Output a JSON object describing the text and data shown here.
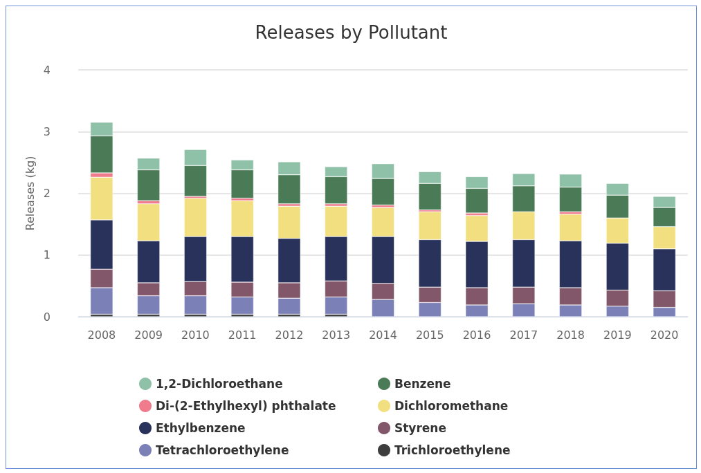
{
  "chart_data": {
    "type": "bar",
    "stacked": true,
    "title": "Releases by Pollutant",
    "ylabel": "Releases (kg)",
    "categories": [
      "2008",
      "2009",
      "2010",
      "2011",
      "2012",
      "2013",
      "2014",
      "2015",
      "2016",
      "2017",
      "2018",
      "2019",
      "2020"
    ],
    "ylim": [
      0,
      4
    ],
    "yticks": [
      0,
      1,
      2,
      3,
      4
    ],
    "grid": "y",
    "legend": "bottom",
    "series": [
      {
        "name": "Trichloroethylene",
        "color": "#3d3d3d",
        "values": [
          0.04,
          0.04,
          0.04,
          0.04,
          0.04,
          0.04,
          0,
          0,
          0,
          0,
          0,
          0,
          0
        ]
      },
      {
        "name": "Tetrachloroethylene",
        "color": "#7b80b6",
        "values": [
          0.43,
          0.3,
          0.3,
          0.28,
          0.26,
          0.28,
          0.28,
          0.23,
          0.19,
          0.21,
          0.19,
          0.17,
          0.15
        ]
      },
      {
        "name": "Styrene",
        "color": "#83576a",
        "values": [
          0.3,
          0.21,
          0.23,
          0.24,
          0.25,
          0.26,
          0.26,
          0.25,
          0.28,
          0.27,
          0.28,
          0.26,
          0.27
        ]
      },
      {
        "name": "Ethylbenzene",
        "color": "#29325b",
        "values": [
          0.8,
          0.68,
          0.73,
          0.74,
          0.72,
          0.72,
          0.76,
          0.77,
          0.75,
          0.77,
          0.76,
          0.76,
          0.68
        ]
      },
      {
        "name": "Dichloromethane",
        "color": "#f2df7f",
        "values": [
          0.69,
          0.6,
          0.62,
          0.58,
          0.52,
          0.49,
          0.47,
          0.45,
          0.42,
          0.45,
          0.43,
          0.41,
          0.36
        ]
      },
      {
        "name": "Di-(2-Ethylhexyl) phthalate",
        "color": "#ef7b8c",
        "values": [
          0.07,
          0.05,
          0.03,
          0.04,
          0.04,
          0.04,
          0.04,
          0.03,
          0.04,
          0,
          0.04,
          0,
          0
        ]
      },
      {
        "name": "Benzene",
        "color": "#4a7b56",
        "values": [
          0.6,
          0.5,
          0.5,
          0.46,
          0.47,
          0.44,
          0.43,
          0.43,
          0.4,
          0.42,
          0.4,
          0.37,
          0.31
        ]
      },
      {
        "name": "1,2-Dichloroethane",
        "color": "#8fc1a8",
        "values": [
          0.22,
          0.19,
          0.26,
          0.16,
          0.21,
          0.16,
          0.24,
          0.19,
          0.19,
          0.2,
          0.21,
          0.19,
          0.18
        ]
      }
    ]
  }
}
